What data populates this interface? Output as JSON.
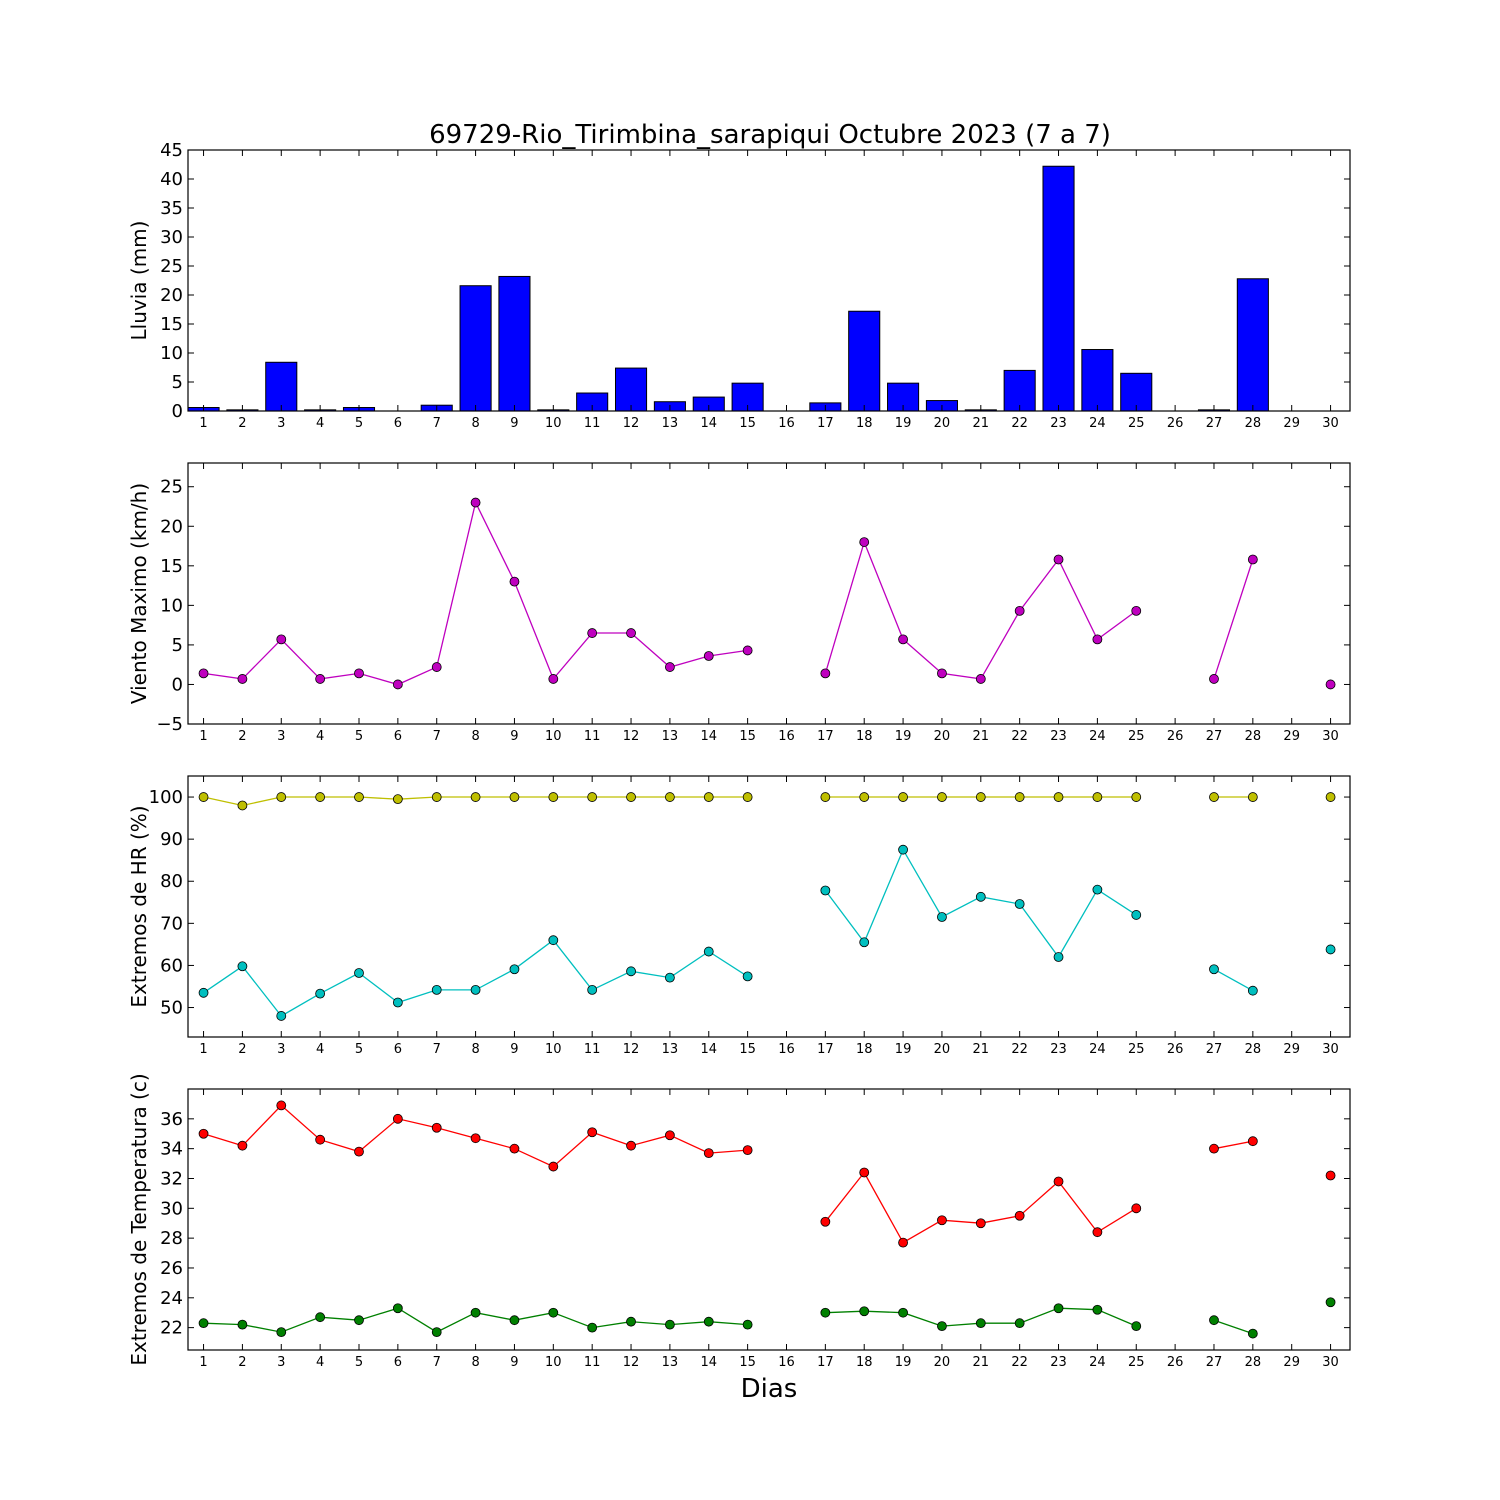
{
  "chart_data": {
    "title": "69729-Rio_Tirimbina_sarapiqui Octubre 2023  (7 a 7)",
    "xlabel": "Dias",
    "x": [
      1,
      2,
      3,
      4,
      5,
      6,
      7,
      8,
      9,
      10,
      11,
      12,
      13,
      14,
      15,
      16,
      17,
      18,
      19,
      20,
      21,
      22,
      23,
      24,
      25,
      26,
      27,
      28,
      29,
      30
    ],
    "xlim": [
      0.6,
      30.5
    ],
    "panels": [
      {
        "type": "bar",
        "ylabel": "Lluvia (mm)",
        "ylim": [
          0,
          45
        ],
        "yticks": [
          0,
          5,
          10,
          15,
          20,
          25,
          30,
          35,
          40,
          45
        ],
        "series": [
          {
            "color": "#0000ff",
            "values": [
              0.6,
              0.2,
              8.4,
              0.2,
              0.6,
              0,
              1.0,
              21.6,
              23.2,
              0.2,
              3.1,
              7.4,
              1.6,
              2.4,
              4.8,
              0,
              1.4,
              17.2,
              4.8,
              1.8,
              0.2,
              7.0,
              42.2,
              10.6,
              6.5,
              0,
              0.2,
              22.8,
              0,
              0
            ]
          }
        ]
      },
      {
        "type": "line",
        "ylabel": "Viento Maximo (km/h)",
        "ylim": [
          -5,
          28
        ],
        "yticks": [
          -5,
          0,
          5,
          10,
          15,
          20,
          25
        ],
        "series": [
          {
            "color": "#bf00bf",
            "values": [
              1.4,
              0.7,
              5.7,
              0.7,
              1.4,
              0,
              2.2,
              23.0,
              13.0,
              0.7,
              6.5,
              6.5,
              2.2,
              3.6,
              4.3,
              null,
              1.4,
              18.0,
              5.7,
              1.4,
              0.7,
              9.3,
              15.8,
              5.7,
              9.3,
              null,
              0.7,
              15.8,
              null,
              0
            ]
          }
        ]
      },
      {
        "type": "line",
        "ylabel": "Extremos de HR (%)",
        "ylim": [
          43,
          105
        ],
        "yticks": [
          50,
          60,
          70,
          80,
          90,
          100
        ],
        "series": [
          {
            "color": "#bfbf00",
            "values": [
              100,
              98,
              100,
              100,
              100,
              99.5,
              100,
              100,
              100,
              100,
              100,
              100,
              100,
              100,
              100,
              null,
              100,
              100,
              100,
              100,
              100,
              100,
              100,
              100,
              100,
              null,
              100,
              100,
              null,
              100
            ]
          },
          {
            "color": "#00bfbf",
            "values": [
              53.5,
              59.8,
              48,
              53.3,
              58.2,
              51.2,
              54.2,
              54.2,
              59.1,
              66,
              54.2,
              58.6,
              57.1,
              63.3,
              57.4,
              null,
              77.8,
              65.5,
              87.5,
              71.5,
              76.3,
              74.6,
              62,
              78,
              72,
              null,
              59.1,
              54,
              null,
              63.8
            ]
          }
        ]
      },
      {
        "type": "line",
        "ylabel": "Extremos de Temperatura (c)",
        "ylim": [
          20.5,
          38
        ],
        "yticks": [
          22,
          24,
          26,
          28,
          30,
          32,
          34,
          36
        ],
        "series": [
          {
            "color": "#ff0000",
            "values": [
              35,
              34.2,
              36.9,
              34.6,
              33.8,
              36,
              35.4,
              34.7,
              34,
              32.8,
              35.1,
              34.2,
              34.9,
              33.7,
              33.9,
              null,
              29.1,
              32.4,
              27.7,
              29.2,
              29,
              29.5,
              31.8,
              28.4,
              30,
              null,
              34,
              34.5,
              null,
              32.2
            ]
          },
          {
            "color": "#008000",
            "values": [
              22.3,
              22.2,
              21.7,
              22.7,
              22.5,
              23.3,
              21.7,
              23,
              22.5,
              23,
              22,
              22.4,
              22.2,
              22.4,
              22.2,
              null,
              23,
              23.1,
              23,
              22.1,
              22.3,
              22.3,
              23.3,
              23.2,
              22.1,
              null,
              22.5,
              21.6,
              null,
              23.7
            ]
          }
        ]
      }
    ]
  }
}
